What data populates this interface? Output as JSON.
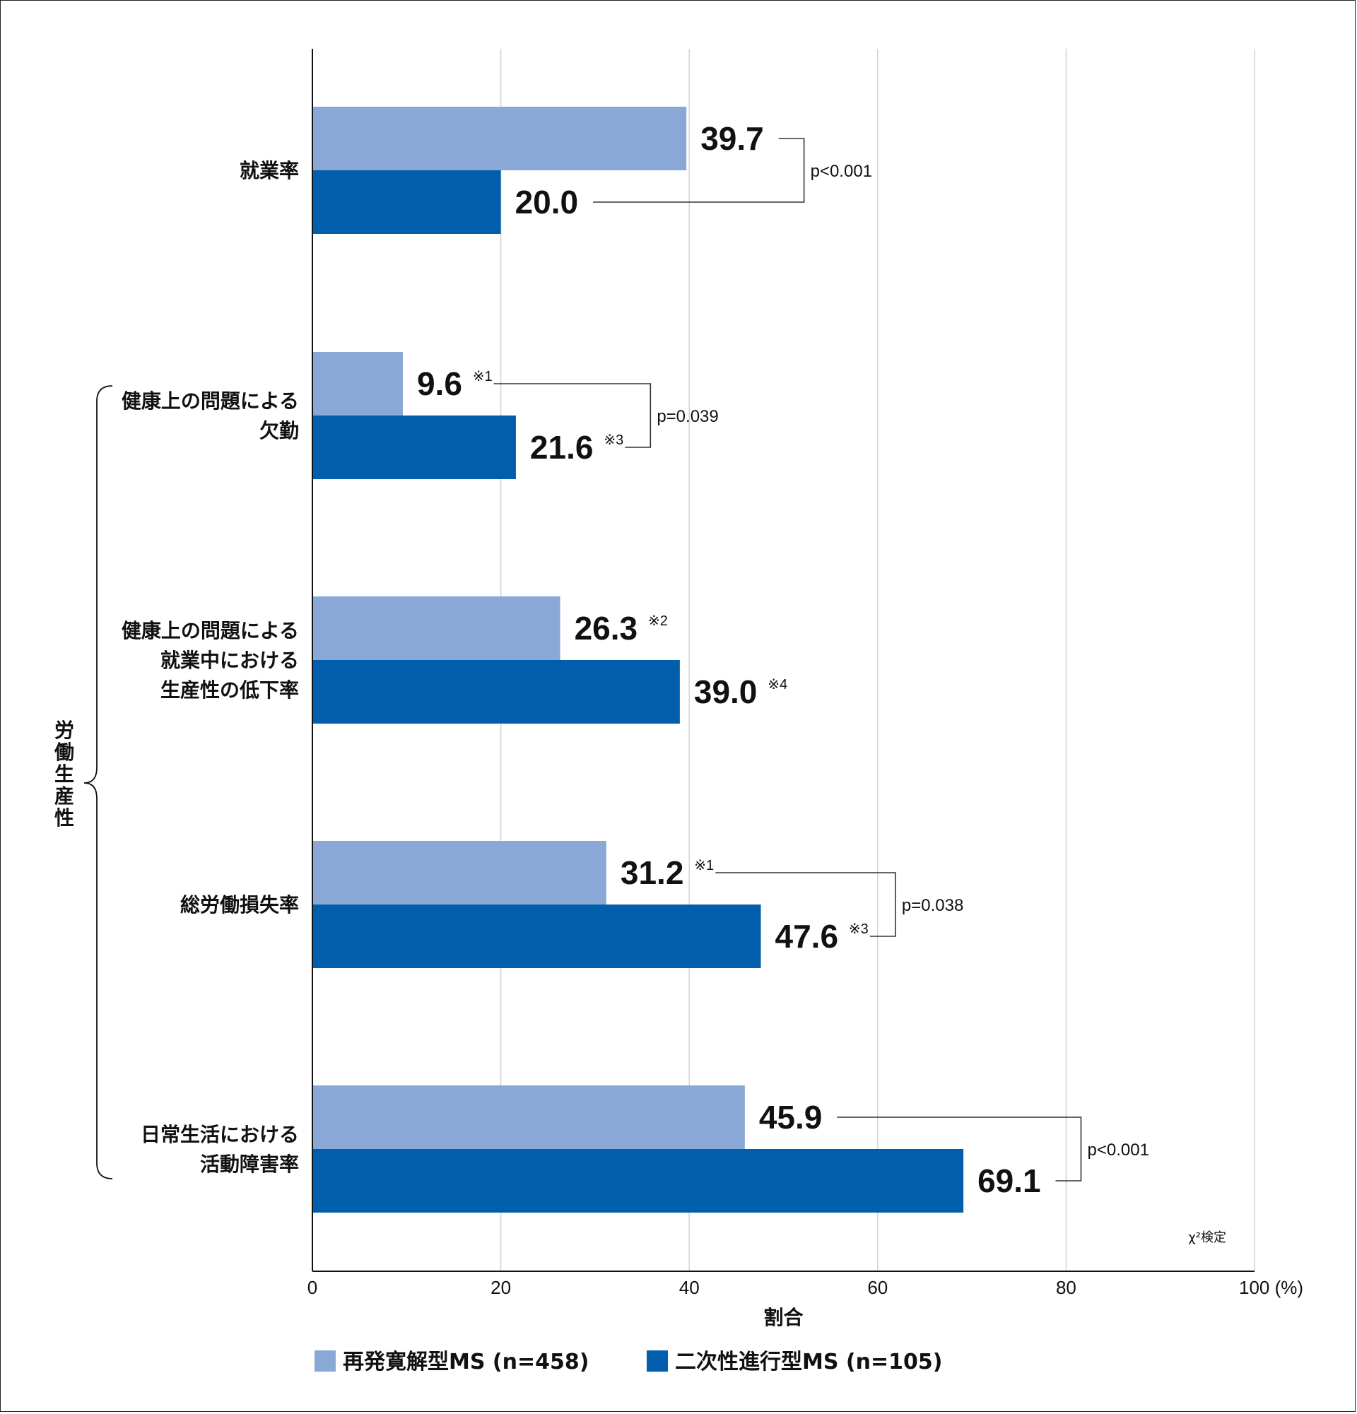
{
  "chart_data": {
    "type": "bar",
    "orientation": "horizontal",
    "xlabel": "割合",
    "xlim": [
      0,
      100
    ],
    "xticks": [
      0,
      20,
      40,
      60,
      80,
      100
    ],
    "xtick_labels": [
      "0",
      "20",
      "40",
      "60",
      "80",
      "100 (%)"
    ],
    "grid": true,
    "group_label": "労働生産性",
    "test_note": "χ²検定",
    "categories": [
      {
        "lines": [
          "就業率"
        ]
      },
      {
        "lines": [
          "健康上の問題による",
          "欠勤"
        ]
      },
      {
        "lines": [
          "健康上の問題による",
          "就業中における",
          "生産性の低下率"
        ]
      },
      {
        "lines": [
          "総労働損失率"
        ]
      },
      {
        "lines": [
          "日常生活における",
          "活動障害率"
        ]
      }
    ],
    "series": [
      {
        "name": "再発寛解型MS (n=458)",
        "color": "#8aa8d6",
        "values": [
          39.7,
          9.6,
          26.3,
          31.2,
          45.9
        ],
        "labels": [
          "39.7",
          "9.6",
          "26.3",
          "31.2",
          "45.9"
        ],
        "notes": [
          "",
          "※1",
          "※2",
          "※1",
          ""
        ]
      },
      {
        "name": "二次性進行型MS (n=105)",
        "color": "#005eac",
        "values": [
          20.0,
          21.6,
          39.0,
          47.6,
          69.1
        ],
        "labels": [
          "20.0",
          "21.6",
          "39.0",
          "47.6",
          "69.1"
        ],
        "notes": [
          "",
          "※3",
          "※4",
          "※3",
          ""
        ]
      }
    ],
    "significance": [
      {
        "category": 0,
        "text": "p<0.001"
      },
      {
        "category": 1,
        "text": "p=0.039"
      },
      {
        "category": 3,
        "text": "p=0.038"
      },
      {
        "category": 4,
        "text": "p<0.001"
      }
    ],
    "legend_position": "bottom"
  }
}
